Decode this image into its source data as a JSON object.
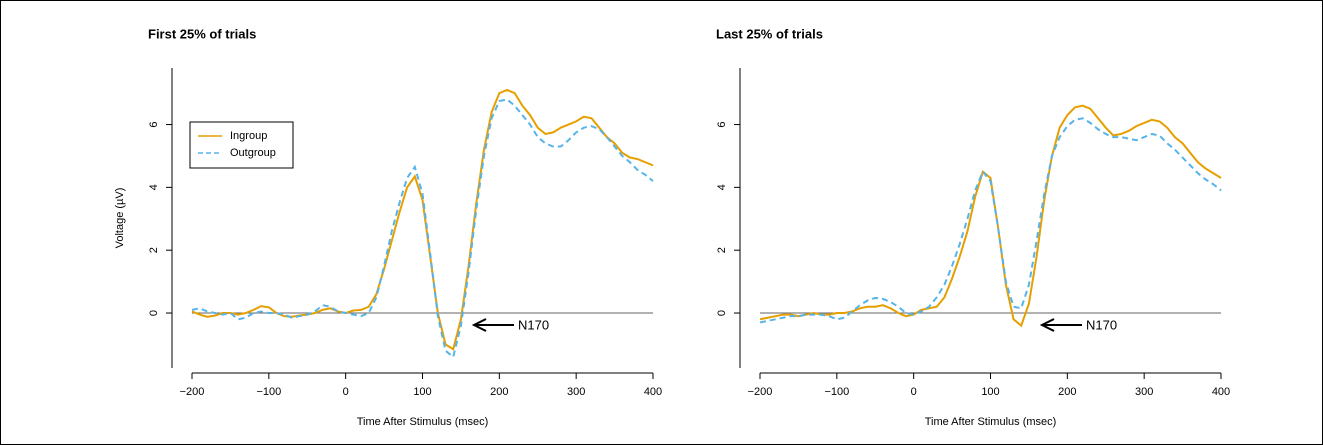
{
  "chart_data": [
    {
      "type": "line",
      "title": "First 25% of trials",
      "xlabel": "Time After Stimulus (msec)",
      "ylabel": "Voltage (µV)",
      "annotation": "N170",
      "legend": "upper left",
      "hline": 0,
      "xlim": [
        -200,
        400
      ],
      "xticks": [
        {
          "value": -200,
          "label": "−200"
        },
        {
          "value": -100,
          "label": "−100"
        },
        0,
        100,
        200,
        300,
        400
      ],
      "ylim": [
        -1.75,
        7.8
      ],
      "yticks": [
        0,
        2,
        4,
        6
      ],
      "x": [
        -200,
        -190,
        -180,
        -170,
        -160,
        -150,
        -140,
        -130,
        -120,
        -110,
        -100,
        -90,
        -80,
        -70,
        -60,
        -50,
        -40,
        -30,
        -20,
        -10,
        0,
        10,
        20,
        30,
        40,
        50,
        60,
        70,
        80,
        90,
        100,
        110,
        120,
        130,
        140,
        150,
        160,
        170,
        180,
        190,
        200,
        210,
        220,
        230,
        240,
        250,
        260,
        270,
        280,
        290,
        300,
        310,
        320,
        330,
        340,
        350,
        360,
        370,
        380,
        390,
        400
      ],
      "series": [
        {
          "name": "Ingroup",
          "color": "#E69F00",
          "linestyle": "solid",
          "values": [
            0.05,
            -0.05,
            -0.12,
            -0.08,
            0,
            0,
            -0.05,
            0,
            0.1,
            0.22,
            0.18,
            0,
            -0.1,
            -0.12,
            -0.08,
            -0.05,
            0,
            0.1,
            0.15,
            0.05,
            0,
            0.08,
            0.1,
            0.2,
            0.6,
            1.4,
            2.3,
            3.2,
            4.0,
            4.35,
            3.6,
            1.8,
            0,
            -1.0,
            -1.15,
            -0.2,
            1.5,
            3.5,
            5.2,
            6.4,
            7.0,
            7.1,
            7.0,
            6.6,
            6.3,
            5.9,
            5.7,
            5.75,
            5.9,
            6.0,
            6.1,
            6.25,
            6.2,
            5.9,
            5.6,
            5.4,
            5.1,
            4.95,
            4.9,
            4.8,
            4.7
          ]
        },
        {
          "name": "Outgroup",
          "color": "#56B4E9",
          "linestyle": "dashed",
          "values": [
            0.1,
            0.15,
            0.05,
            0,
            -0.05,
            0,
            -0.2,
            -0.15,
            0,
            0.05,
            0,
            0,
            -0.05,
            -0.15,
            -0.1,
            -0.05,
            0.05,
            0.25,
            0.2,
            0.05,
            0,
            -0.05,
            -0.1,
            0,
            0.5,
            1.5,
            2.6,
            3.5,
            4.3,
            4.65,
            3.8,
            1.9,
            -0.1,
            -1.2,
            -1.4,
            -0.4,
            1.3,
            3.3,
            5.0,
            6.2,
            6.75,
            6.8,
            6.6,
            6.3,
            6.0,
            5.6,
            5.4,
            5.3,
            5.3,
            5.5,
            5.75,
            5.9,
            5.95,
            5.85,
            5.6,
            5.3,
            5.0,
            4.8,
            4.55,
            4.4,
            4.2
          ]
        }
      ]
    },
    {
      "type": "line",
      "title": "Last 25% of trials",
      "xlabel": "Time After Stimulus (msec)",
      "annotation": "N170",
      "hline": 0,
      "xlim": [
        -200,
        400
      ],
      "xticks": [
        {
          "value": -200,
          "label": "−200"
        },
        {
          "value": -100,
          "label": "−100"
        },
        0,
        100,
        200,
        300,
        400
      ],
      "ylim": [
        -1.75,
        7.8
      ],
      "yticks": [
        0,
        2,
        4,
        6
      ],
      "x": [
        -200,
        -190,
        -180,
        -170,
        -160,
        -150,
        -140,
        -130,
        -120,
        -110,
        -100,
        -90,
        -80,
        -70,
        -60,
        -50,
        -40,
        -30,
        -20,
        -10,
        0,
        10,
        20,
        30,
        40,
        50,
        60,
        70,
        80,
        90,
        100,
        110,
        120,
        130,
        140,
        150,
        160,
        170,
        180,
        190,
        200,
        210,
        220,
        230,
        240,
        250,
        260,
        270,
        280,
        290,
        300,
        310,
        320,
        330,
        340,
        350,
        360,
        370,
        380,
        390,
        400
      ],
      "series": [
        {
          "name": "Ingroup",
          "color": "#E69F00",
          "linestyle": "solid",
          "values": [
            -0.2,
            -0.15,
            -0.1,
            -0.05,
            -0.05,
            -0.1,
            -0.05,
            0,
            -0.05,
            -0.05,
            0,
            0,
            0.05,
            0.15,
            0.2,
            0.2,
            0.25,
            0.15,
            0,
            -0.1,
            -0.05,
            0.1,
            0.15,
            0.2,
            0.5,
            1.1,
            1.8,
            2.6,
            3.7,
            4.5,
            4.3,
            2.7,
            0.9,
            -0.2,
            -0.4,
            0.3,
            1.8,
            3.6,
            5.0,
            5.9,
            6.3,
            6.55,
            6.6,
            6.5,
            6.2,
            5.9,
            5.65,
            5.7,
            5.8,
            5.95,
            6.05,
            6.15,
            6.1,
            5.9,
            5.6,
            5.4,
            5.1,
            4.8,
            4.6,
            4.45,
            4.3
          ]
        },
        {
          "name": "Outgroup",
          "color": "#56B4E9",
          "linestyle": "dashed",
          "values": [
            -0.3,
            -0.25,
            -0.2,
            -0.15,
            -0.1,
            -0.1,
            -0.05,
            -0.05,
            -0.05,
            -0.1,
            -0.2,
            -0.15,
            0.05,
            0.25,
            0.4,
            0.48,
            0.45,
            0.35,
            0.2,
            0,
            -0.05,
            0.05,
            0.2,
            0.5,
            0.9,
            1.5,
            2.2,
            3.0,
            3.9,
            4.5,
            4.2,
            2.7,
            1.0,
            0.2,
            0.15,
            0.9,
            2.3,
            3.8,
            5.0,
            5.6,
            5.95,
            6.15,
            6.2,
            6.05,
            5.85,
            5.7,
            5.6,
            5.6,
            5.55,
            5.5,
            5.6,
            5.7,
            5.65,
            5.4,
            5.2,
            4.95,
            4.7,
            4.45,
            4.25,
            4.1,
            3.9
          ]
        }
      ]
    }
  ]
}
